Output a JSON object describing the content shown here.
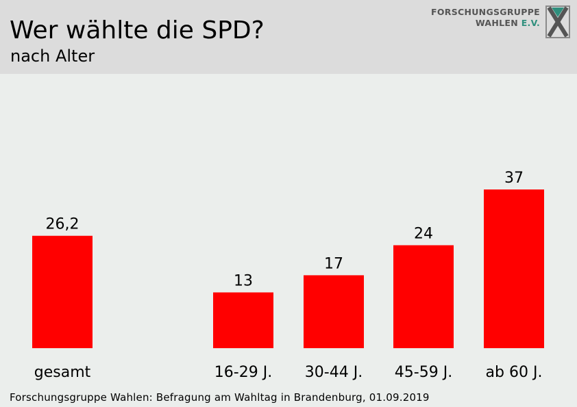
{
  "header": {
    "title": "Wer wählte die SPD?",
    "subtitle": "nach Alter"
  },
  "logo": {
    "line1": "FORSCHUNGSGRUPPE",
    "line2_main": "WAHLEN",
    "line2_accent": "E.V.",
    "accent_color": "#2f8f7d",
    "icon": "fgw-x-logo-icon"
  },
  "chart_data": {
    "type": "bar",
    "categories": [
      "gesamt",
      "16-29 J.",
      "30-44 J.",
      "45-59 J.",
      "ab 60 J."
    ],
    "values": [
      26.2,
      13,
      17,
      24,
      37
    ],
    "value_labels": [
      "26,2",
      "13",
      "17",
      "24",
      "37"
    ],
    "bar_color": "#ff0000",
    "ylim": [
      0,
      37
    ],
    "grid": false,
    "title": "Wer wählte die SPD?",
    "subtitle": "nach Alter"
  },
  "footer": {
    "source": "Forschungsgruppe Wahlen: Befragung am Wahltag in Brandenburg, 01.09.2019"
  }
}
